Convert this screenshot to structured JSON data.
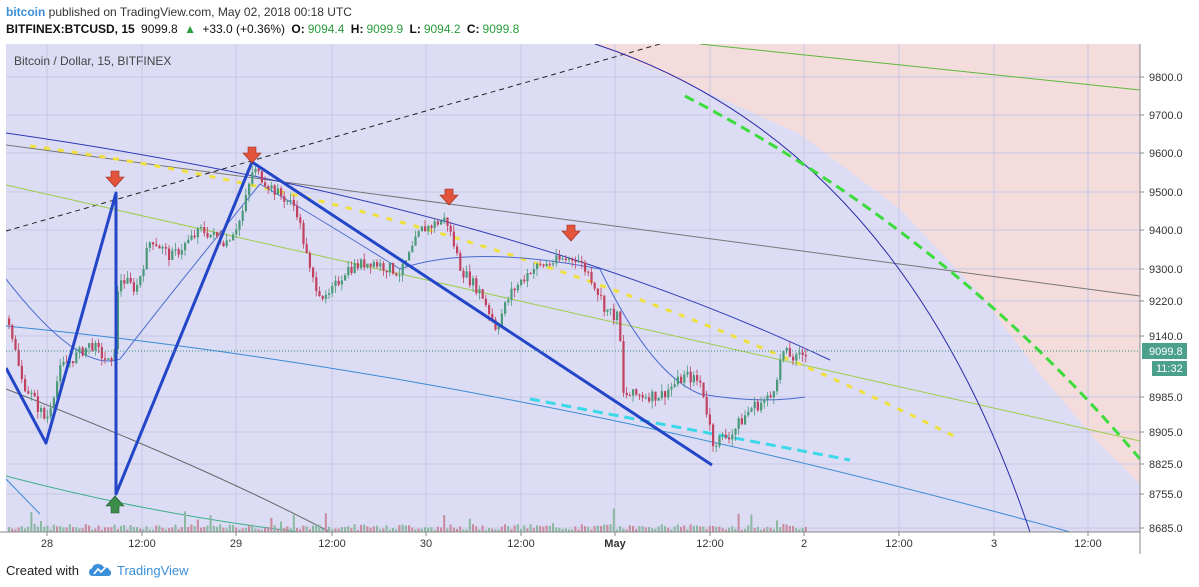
{
  "header": {
    "brand": "bitcoin",
    "published_text": "published on TradingView.com, May 02, 2018 00:18 UTC",
    "symbol": "BITFINEX:BTCUSD, 15",
    "last": "9099.8",
    "change": "+33.0 (+0.36%)",
    "o_label": "O:",
    "o": "9094.4",
    "h_label": "H:",
    "h": "9099.9",
    "l_label": "L:",
    "l": "9094.2",
    "c_label": "C:",
    "c": "9099.8"
  },
  "chart_title": "Bitcoin / Dollar, 15, BITFINEX",
  "price_tag": "9099.8",
  "time_tag": "11:32",
  "footer": {
    "created": "Created with",
    "brand": "TradingView"
  },
  "colors": {
    "bg_main": "#dcdcf4",
    "bg_zone": "#f5dcdc",
    "candle_up": "#4a9a7a",
    "candle_down": "#c2415e",
    "zigzag": "#2346c8",
    "arrow_down": "#e2543c",
    "arrow_up": "#3c8c4a",
    "price_tag": "#4aa08a"
  },
  "chart_data": {
    "type": "candlestick",
    "y_ticks": [
      8685.0,
      8755.0,
      8825.0,
      8905.0,
      8985.0,
      9140.0,
      9220.0,
      9300.0,
      9400.0,
      9500.0,
      9600.0,
      9700.0,
      9800.0
    ],
    "y_tick_labels": [
      "8685.0",
      "8755.0",
      "8825.0",
      "8905.0",
      "8985.0",
      "9140.0",
      "9220.0",
      "9300.0",
      "9400.0",
      "9500.0",
      "9600.0",
      "9700.0",
      "9800.0"
    ],
    "x_tick_labels": [
      "28",
      "12:00",
      "29",
      "12:00",
      "30",
      "12:00",
      "May",
      "12:00",
      "2",
      "12:00",
      "3",
      "12:00"
    ],
    "last_price": 9099.8,
    "zigzag_points": [
      {
        "t": "27 21:00",
        "price": 9000
      },
      {
        "t": "28 00:00",
        "price": 8870
      },
      {
        "t": "28 07:00",
        "price": 9500
      },
      {
        "t": "28 07:05",
        "price": 8750
      },
      {
        "t": "29 03:00",
        "price": 9580
      },
      {
        "t": "Apr 30 18:00",
        "price": 8830
      }
    ],
    "markers": [
      {
        "type": "down",
        "t": "28 07:00",
        "price": 9520
      },
      {
        "type": "down",
        "t": "29 03:00",
        "price": 9595
      },
      {
        "type": "down",
        "t": "30 03:00",
        "price": 9480
      },
      {
        "type": "down",
        "t": "30 18:00",
        "price": 9385
      },
      {
        "type": "up",
        "t": "28 07:00",
        "price": 8720
      }
    ],
    "candles_summary": {
      "open": 9100,
      "high": 9580,
      "low": 8830,
      "close": 9099.8
    }
  }
}
